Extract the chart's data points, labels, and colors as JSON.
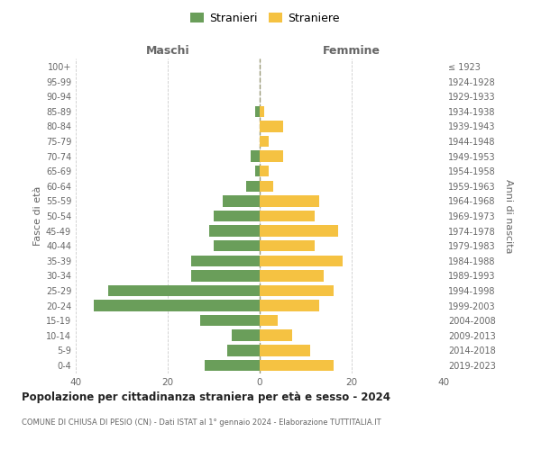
{
  "age_groups": [
    "0-4",
    "5-9",
    "10-14",
    "15-19",
    "20-24",
    "25-29",
    "30-34",
    "35-39",
    "40-44",
    "45-49",
    "50-54",
    "55-59",
    "60-64",
    "65-69",
    "70-74",
    "75-79",
    "80-84",
    "85-89",
    "90-94",
    "95-99",
    "100+"
  ],
  "birth_years": [
    "2019-2023",
    "2014-2018",
    "2009-2013",
    "2004-2008",
    "1999-2003",
    "1994-1998",
    "1989-1993",
    "1984-1988",
    "1979-1983",
    "1974-1978",
    "1969-1973",
    "1964-1968",
    "1959-1963",
    "1954-1958",
    "1949-1953",
    "1944-1948",
    "1939-1943",
    "1934-1938",
    "1929-1933",
    "1924-1928",
    "≤ 1923"
  ],
  "males": [
    12,
    7,
    6,
    13,
    36,
    33,
    15,
    15,
    10,
    11,
    10,
    8,
    3,
    1,
    2,
    0,
    0,
    1,
    0,
    0,
    0
  ],
  "females": [
    16,
    11,
    7,
    4,
    13,
    16,
    14,
    18,
    12,
    17,
    12,
    13,
    3,
    2,
    5,
    2,
    5,
    1,
    0,
    0,
    0
  ],
  "male_color": "#6a9e5a",
  "female_color": "#f5c242",
  "bar_height": 0.75,
  "xlim": [
    -40,
    40
  ],
  "xticks": [
    -40,
    -20,
    0,
    20,
    40
  ],
  "xlabel_left": "Maschi",
  "xlabel_right": "Femmine",
  "ylabel_left": "Fasce di età",
  "ylabel_right": "Anni di nascita",
  "legend_male": "Stranieri",
  "legend_female": "Straniere",
  "title": "Popolazione per cittadinanza straniera per età e sesso - 2024",
  "subtitle": "COMUNE DI CHIUSA DI PESIO (CN) - Dati ISTAT al 1° gennaio 2024 - Elaborazione TUTTITALIA.IT",
  "bg_color": "#ffffff",
  "grid_color": "#cccccc",
  "text_color": "#666666",
  "center_line_color": "#999977"
}
